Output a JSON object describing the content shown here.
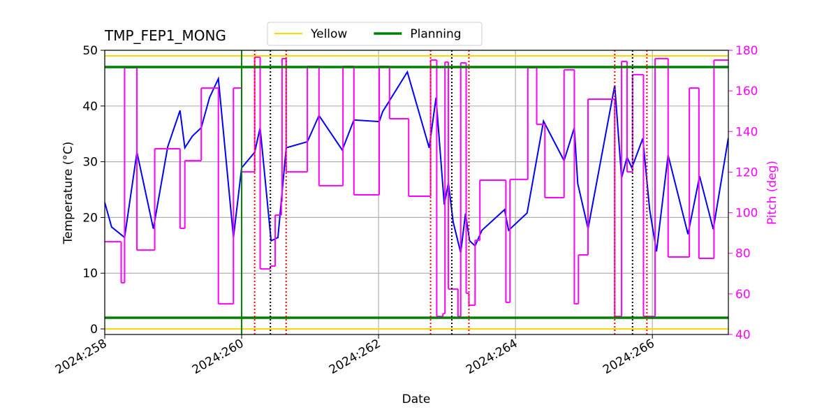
{
  "chart_data": {
    "type": "line",
    "title": "TMP_FEP1_MONG",
    "xlabel": "Date",
    "ylabel": "Temperature (°C)",
    "y2label": "Pitch (deg)",
    "xlim": [
      258,
      267.11
    ],
    "xticks": [
      {
        "value": 258,
        "label": "2024:258"
      },
      {
        "value": 260,
        "label": "2024:260"
      },
      {
        "value": 262,
        "label": "2024:262"
      },
      {
        "value": 264,
        "label": "2024:264"
      },
      {
        "value": 266,
        "label": "2024:266"
      }
    ],
    "ylim": [
      -1,
      50
    ],
    "yticks": [
      0,
      10,
      20,
      30,
      40,
      50
    ],
    "y2lim": [
      40,
      180
    ],
    "y2ticks": [
      40,
      60,
      80,
      100,
      120,
      140,
      160,
      180
    ],
    "y2color": "#ff00ff",
    "grid": true,
    "legend": "top",
    "hlines": [
      {
        "name": "Yellow",
        "color": "#ffd700",
        "values": [
          49,
          0
        ]
      },
      {
        "name": "Planning",
        "color": "#008000",
        "values": [
          47,
          2
        ]
      }
    ],
    "vlines": [
      {
        "color": "#008000",
        "style": "solid",
        "x": [
          260
        ]
      },
      {
        "color": "#ff0000",
        "style": "dotted",
        "x": [
          260.19,
          260.65,
          262.76,
          263.32,
          265.45,
          265.92
        ]
      },
      {
        "color": "#000000",
        "style": "dotted",
        "x": [
          260.42,
          263.07,
          265.71
        ]
      }
    ],
    "series": [
      {
        "color": "#0000ff",
        "x": [
          258.0,
          258.1,
          258.26,
          258.29,
          258.47,
          258.71,
          258.92,
          259.1,
          259.17,
          259.28,
          259.41,
          259.53,
          259.66,
          259.88,
          260.0,
          260.19,
          260.27,
          260.43,
          260.53,
          260.65,
          260.96,
          261.13,
          261.47,
          261.64,
          262.01,
          262.06,
          262.42,
          262.74,
          262.84,
          262.96,
          263.02,
          263.09,
          263.2,
          263.27,
          263.33,
          263.41,
          263.51,
          263.84,
          263.9,
          264.17,
          264.41,
          264.71,
          264.86,
          264.91,
          265.06,
          265.45,
          265.55,
          265.63,
          265.7,
          265.86,
          265.96,
          266.06,
          266.23,
          266.52,
          266.69,
          266.89,
          267.11
        ],
        "values": [
          22.7,
          18.3,
          16.7,
          16.4,
          31.7,
          18.0,
          32.7,
          39.2,
          32.5,
          34.6,
          36.1,
          41.5,
          44.9,
          16.4,
          28.9,
          31.7,
          36.1,
          15.8,
          16.4,
          32.5,
          33.6,
          38.3,
          32.1,
          37.5,
          37.2,
          39.0,
          46.1,
          32.5,
          41.5,
          22.3,
          26.2,
          19.2,
          13.7,
          20.7,
          15.8,
          14.9,
          17.7,
          21.4,
          17.7,
          20.8,
          37.3,
          30.2,
          36.1,
          26.1,
          18.0,
          43.7,
          27.1,
          30.8,
          28.9,
          34.2,
          21.4,
          13.9,
          31.2,
          17.0,
          27.4,
          17.9,
          34.3
        ]
      },
      {
        "color": "#ff00ff",
        "axis": "y2",
        "drawstyle": "steps-post",
        "x": [
          258.0,
          258.24,
          258.29,
          258.47,
          258.73,
          259.1,
          259.17,
          259.41,
          259.66,
          259.88,
          260.0,
          260.19,
          260.27,
          260.42,
          260.49,
          260.58,
          260.59,
          260.65,
          260.96,
          261.13,
          261.48,
          261.64,
          262.01,
          262.16,
          262.44,
          262.76,
          262.85,
          262.94,
          262.97,
          263.02,
          263.16,
          263.2,
          263.28,
          263.32,
          263.41,
          263.48,
          263.86,
          263.92,
          264.18,
          264.31,
          264.43,
          264.71,
          264.86,
          264.92,
          265.06,
          265.45,
          265.55,
          265.63,
          265.71,
          265.87,
          266.04,
          266.23,
          266.54,
          266.68,
          266.9
        ],
        "values": [
          85.7,
          65.5,
          171.4,
          81.6,
          131.5,
          92.3,
          125.6,
          161.4,
          55.1,
          161.4,
          120.1,
          176.6,
          72.3,
          73.7,
          98.8,
          105.3,
          175.9,
          120.1,
          172.1,
          113.3,
          172.1,
          108.8,
          172.1,
          146.3,
          108.1,
          175.2,
          48.9,
          50.3,
          174.2,
          62.4,
          48.9,
          173.8,
          60.3,
          54.4,
          86.4,
          116.0,
          55.8,
          116.4,
          171.4,
          143.5,
          107.4,
          170.4,
          55.1,
          79.2,
          155.9,
          48.9,
          174.5,
          120.1,
          168.0,
          48.9,
          175.9,
          78.2,
          161.4,
          77.5,
          175.2
        ]
      }
    ]
  }
}
